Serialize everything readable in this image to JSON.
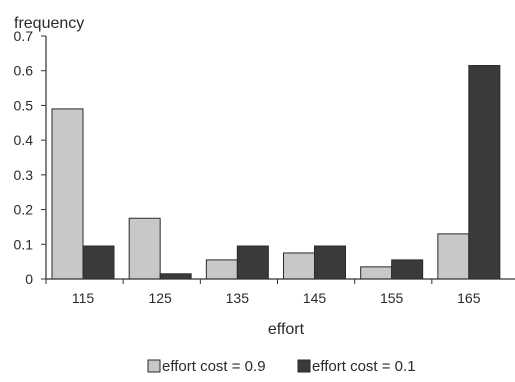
{
  "chart_data": {
    "type": "bar",
    "ylabel": "frequency",
    "xlabel": "effort",
    "categories": [
      "115",
      "125",
      "135",
      "145",
      "155",
      "165"
    ],
    "ylim": [
      0,
      0.7
    ],
    "yticks": [
      "0",
      "0.1",
      "0.2",
      "0.3",
      "0.4",
      "0.5",
      "0.6",
      "0.7"
    ],
    "grid": false,
    "legend_position": "bottom",
    "series": [
      {
        "name": "effort cost = 0.9",
        "color": "#c8c8c8",
        "values": [
          0.49,
          0.175,
          0.055,
          0.075,
          0.035,
          0.13
        ]
      },
      {
        "name": "effort cost = 0.1",
        "color": "#3a3a3a",
        "values": [
          0.095,
          0.015,
          0.095,
          0.095,
          0.055,
          0.615
        ]
      }
    ]
  }
}
